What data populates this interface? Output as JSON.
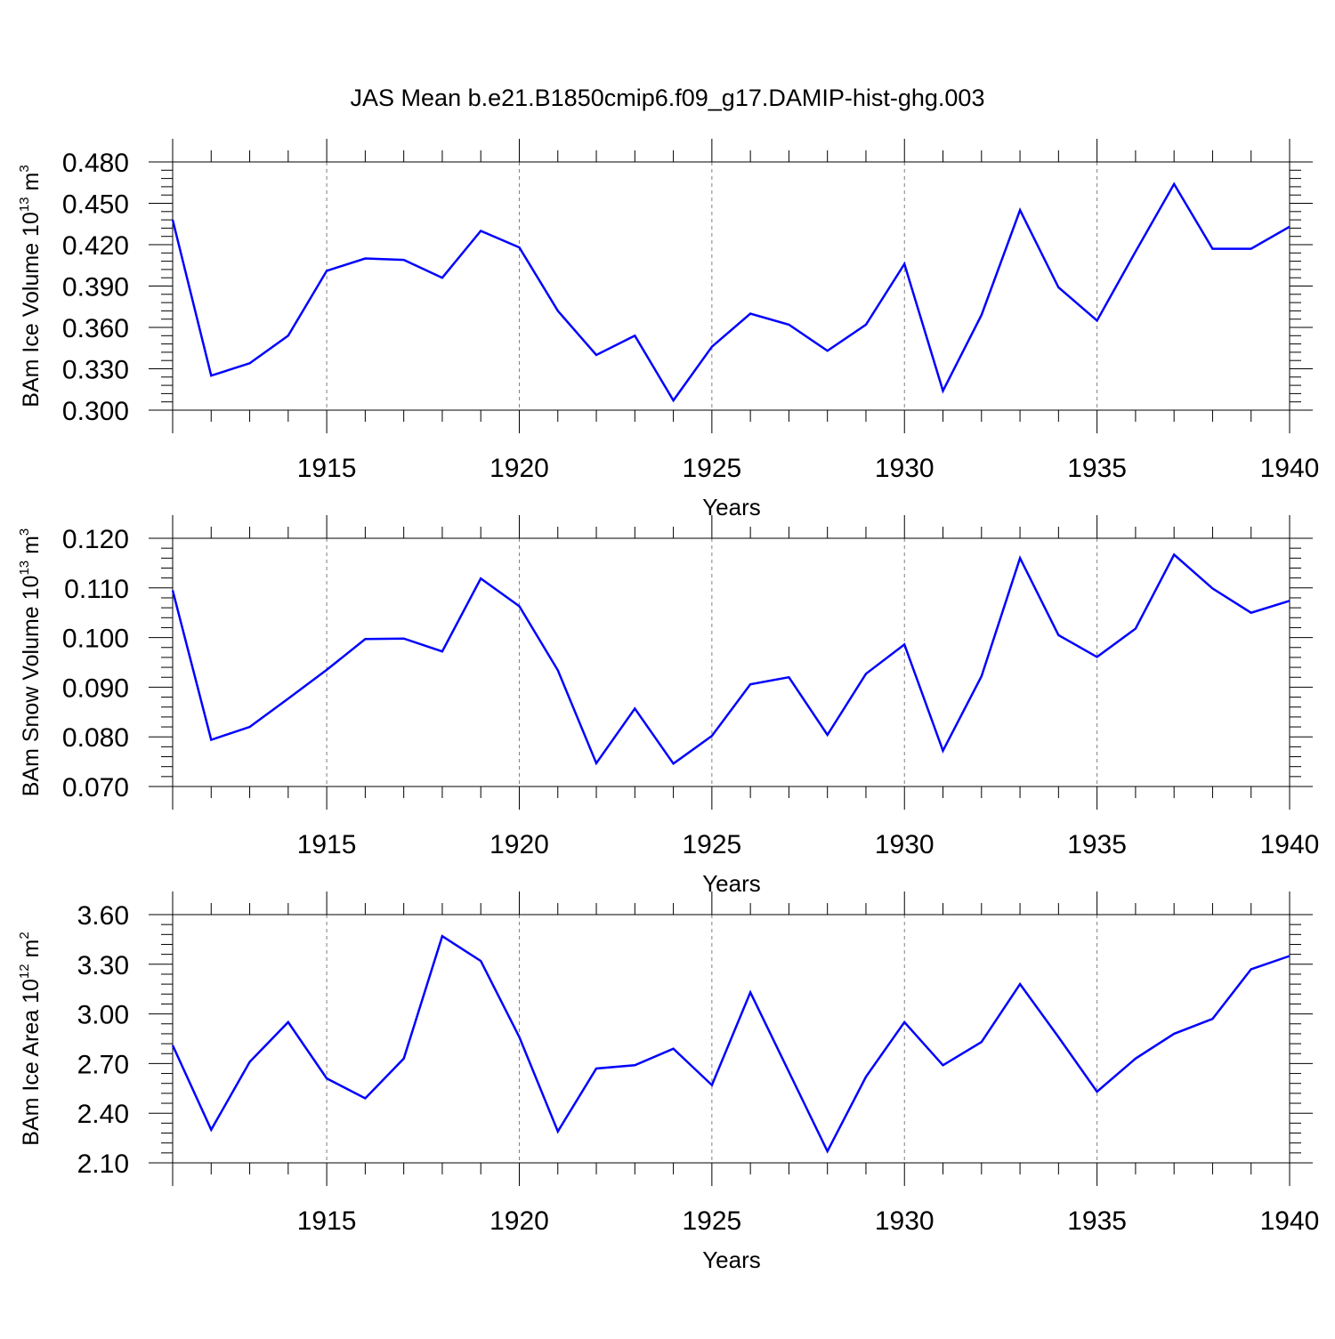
{
  "title": "JAS Mean b.e21.B1850cmip6.f09_g17.DAMIP-hist-ghg.003",
  "colors": {
    "line": "#0000ff",
    "axis": "#000000",
    "grid": "#808080"
  },
  "chart_data": [
    {
      "type": "line",
      "ylabel": {
        "main": "BAm Ice Volume 10",
        "exp": "13",
        "unit": " m",
        "unit_exp": "3"
      },
      "xlabel": "Years",
      "xlim": [
        1911,
        1940
      ],
      "ylim": [
        0.3,
        0.48
      ],
      "yticks": [
        0.3,
        0.33,
        0.36,
        0.39,
        0.42,
        0.45,
        0.48
      ],
      "ytick_labels": [
        "0.300",
        "0.330",
        "0.360",
        "0.390",
        "0.420",
        "0.450",
        "0.480"
      ],
      "xticks": [
        1915,
        1920,
        1925,
        1930,
        1935,
        1940
      ],
      "xtick_labels": [
        "1915",
        "1920",
        "1925",
        "1930",
        "1935",
        "1940"
      ],
      "x": [
        1911,
        1912,
        1913,
        1914,
        1915,
        1916,
        1917,
        1918,
        1919,
        1920,
        1921,
        1922,
        1923,
        1924,
        1925,
        1926,
        1927,
        1928,
        1929,
        1930,
        1931,
        1932,
        1933,
        1934,
        1935,
        1936,
        1937,
        1938,
        1939,
        1940
      ],
      "values": [
        0.438,
        0.325,
        0.334,
        0.354,
        0.401,
        0.41,
        0.409,
        0.396,
        0.43,
        0.418,
        0.372,
        0.34,
        0.354,
        0.307,
        0.346,
        0.37,
        0.362,
        0.343,
        0.362,
        0.406,
        0.314,
        0.369,
        0.445,
        0.389,
        0.365,
        0.415,
        0.464,
        0.417,
        0.417,
        0.433
      ]
    },
    {
      "type": "line",
      "ylabel": {
        "main": "BAm Snow Volume 10",
        "exp": "13",
        "unit": " m",
        "unit_exp": "3"
      },
      "xlabel": "Years",
      "xlim": [
        1911,
        1940
      ],
      "ylim": [
        0.07,
        0.12
      ],
      "yticks": [
        0.07,
        0.08,
        0.09,
        0.1,
        0.11,
        0.12
      ],
      "ytick_labels": [
        "0.070",
        "0.080",
        "0.090",
        "0.100",
        "0.110",
        "0.120"
      ],
      "xticks": [
        1915,
        1920,
        1925,
        1930,
        1935,
        1940
      ],
      "xtick_labels": [
        "1915",
        "1920",
        "1925",
        "1930",
        "1935",
        "1940"
      ],
      "x": [
        1911,
        1912,
        1913,
        1914,
        1915,
        1916,
        1917,
        1918,
        1919,
        1920,
        1921,
        1922,
        1923,
        1924,
        1925,
        1926,
        1927,
        1928,
        1929,
        1930,
        1931,
        1932,
        1933,
        1934,
        1935,
        1936,
        1937,
        1938,
        1939,
        1940
      ],
      "values": [
        0.1095,
        0.0794,
        0.082,
        0.0877,
        0.0935,
        0.0997,
        0.0998,
        0.0972,
        0.1119,
        0.1063,
        0.0934,
        0.0747,
        0.0857,
        0.0746,
        0.0802,
        0.0906,
        0.092,
        0.0804,
        0.0927,
        0.0986,
        0.0772,
        0.0922,
        0.116,
        0.1005,
        0.0961,
        0.1018,
        0.1167,
        0.1099,
        0.105,
        0.1074
      ]
    },
    {
      "type": "line",
      "ylabel": {
        "main": "BAm Ice Area 10",
        "exp": "12",
        "unit": " m",
        "unit_exp": "2"
      },
      "xlabel": "Years",
      "xlim": [
        1911,
        1940
      ],
      "ylim": [
        2.1,
        3.6
      ],
      "yticks": [
        2.1,
        2.4,
        2.7,
        3.0,
        3.3,
        3.6
      ],
      "ytick_labels": [
        "2.10",
        "2.40",
        "2.70",
        "3.00",
        "3.30",
        "3.60"
      ],
      "xticks": [
        1915,
        1920,
        1925,
        1930,
        1935,
        1940
      ],
      "xtick_labels": [
        "1915",
        "1920",
        "1925",
        "1930",
        "1935",
        "1940"
      ],
      "x": [
        1911,
        1912,
        1913,
        1914,
        1915,
        1916,
        1917,
        1918,
        1919,
        1920,
        1921,
        1922,
        1923,
        1924,
        1925,
        1926,
        1927,
        1928,
        1929,
        1930,
        1931,
        1932,
        1933,
        1934,
        1935,
        1936,
        1937,
        1938,
        1939,
        1940
      ],
      "values": [
        2.81,
        2.3,
        2.71,
        2.95,
        2.61,
        2.49,
        2.73,
        3.47,
        3.32,
        2.86,
        2.29,
        2.67,
        2.69,
        2.79,
        2.57,
        3.13,
        2.65,
        2.17,
        2.62,
        2.95,
        2.69,
        2.83,
        3.18,
        2.86,
        2.53,
        2.73,
        2.88,
        2.97,
        3.27,
        3.35
      ]
    }
  ]
}
